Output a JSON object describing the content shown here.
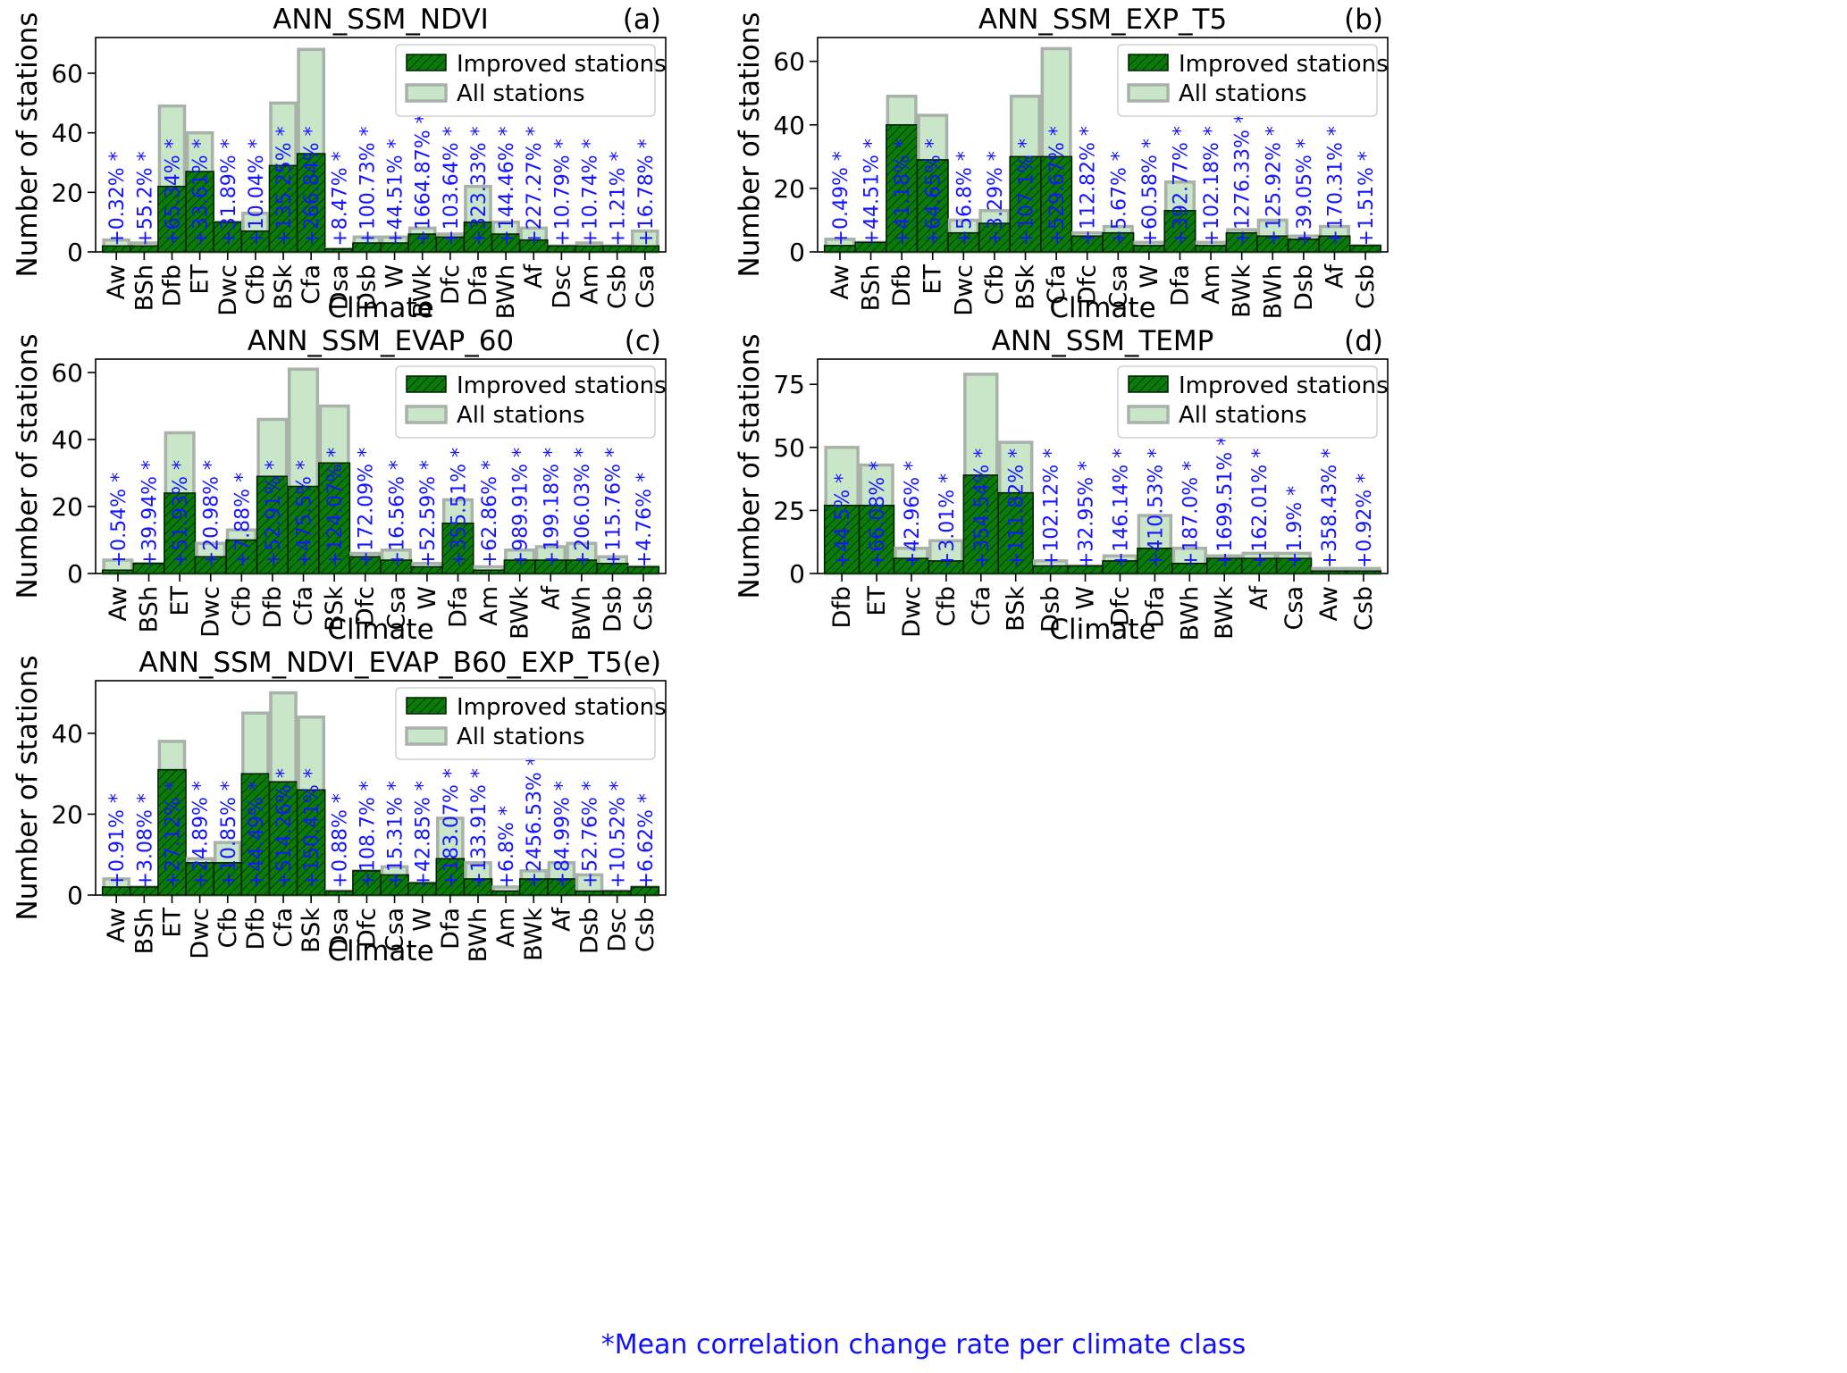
{
  "figure": {
    "footnote": "*Mean correlation change rate per climate class",
    "colors": {
      "improved": "#0a7a0a",
      "all": "#c9e6c9",
      "allEdge": "#a8b2a8",
      "annotation": "#1515ff",
      "axis": "#000000"
    }
  },
  "chart_data": [
    {
      "type": "bar",
      "panel": "(a)",
      "title": "ANN_SSM_NDVI",
      "xlabel": "Climate",
      "ylabel": "Number of stations",
      "ylim": [
        0,
        72
      ],
      "yticks": [
        0,
        20,
        40,
        60
      ],
      "legend": {
        "position": "top-right",
        "entries": [
          "Improved stations",
          "All stations"
        ]
      },
      "categories": [
        "Aw",
        "BSh",
        "Dfb",
        "ET",
        "Dwc",
        "Cfb",
        "BSk",
        "Cfa",
        "Dsa",
        "Dsb",
        "W",
        "BWk",
        "Dfc",
        "Dfa",
        "BWh",
        "Af",
        "Dsc",
        "Am",
        "Csb",
        "Csa"
      ],
      "series": [
        {
          "name": "All stations",
          "values": [
            4,
            3,
            49,
            40,
            10,
            13,
            50,
            68,
            1,
            5,
            5,
            8,
            6,
            22,
            10,
            8,
            2,
            3,
            2,
            7
          ]
        },
        {
          "name": "Improved stations",
          "values": [
            2,
            2,
            22,
            27,
            10,
            7,
            29,
            33,
            1,
            3,
            3,
            6,
            5,
            10,
            6,
            4,
            2,
            2,
            2,
            2
          ]
        }
      ],
      "annotations": [
        "+0.32% *",
        "+55.2% *",
        "+65.34% *",
        "+33.61% *",
        "+31.89% *",
        "+10.04% *",
        "+135.25% *",
        "+266.84% *",
        "+8.47% *",
        "+100.73% *",
        "+44.51% *",
        "+1664.87% *",
        "+103.64% *",
        "+323.33% *",
        "+144.46% *",
        "+227.27% *",
        "+10.79% *",
        "+10.74% *",
        "+1.21% *",
        "+16.78% *"
      ]
    },
    {
      "type": "bar",
      "panel": "(b)",
      "title": "ANN_SSM_EXP_T5",
      "xlabel": "Climate",
      "ylabel": "Number of stations",
      "ylim": [
        0,
        67.5
      ],
      "yticks": [
        0,
        20,
        40,
        60
      ],
      "legend": {
        "position": "top-right",
        "entries": [
          "Improved stations",
          "All stations"
        ]
      },
      "categories": [
        "Aw",
        "BSh",
        "Dfb",
        "ET",
        "Dwc",
        "Cfb",
        "BSk",
        "Cfa",
        "Dfc",
        "Csa",
        "W",
        "Dfa",
        "Am",
        "BWk",
        "BWh",
        "Dsb",
        "Af",
        "Csb"
      ],
      "series": [
        {
          "name": "All stations",
          "values": [
            4,
            3,
            49,
            43,
            10,
            13,
            49,
            64,
            6,
            8,
            3,
            22,
            3,
            7,
            10,
            5,
            8,
            2
          ]
        },
        {
          "name": "Improved stations",
          "values": [
            2,
            3,
            40,
            29,
            6,
            9,
            30,
            30,
            5,
            6,
            2,
            13,
            2,
            6,
            5,
            4,
            5,
            2
          ]
        }
      ],
      "annotations": [
        "+0.49% *",
        "+44.51% *",
        "+41.18% *",
        "+64.65% *",
        "+56.8% *",
        "+3.29% *",
        "+107.1% *",
        "+529.67% *",
        "+112.82% *",
        "+5.67% *",
        "+60.58% *",
        "+392.77% *",
        "+102.18% *",
        "+1276.33% *",
        "+125.92% *",
        "+39.05% *",
        "+170.31% *",
        "+1.51% *"
      ]
    },
    {
      "type": "bar",
      "panel": "(c)",
      "title": "ANN_SSM_EVAP_60",
      "xlabel": "Climate",
      "ylabel": "Number of stations",
      "ylim": [
        0,
        64
      ],
      "yticks": [
        0,
        20,
        40,
        60
      ],
      "legend": {
        "position": "top-right",
        "entries": [
          "Improved stations",
          "All stations"
        ]
      },
      "categories": [
        "Aw",
        "BSh",
        "ET",
        "Dwc",
        "Cfb",
        "Dfb",
        "Cfa",
        "BSk",
        "Dfc",
        "Csa",
        "W",
        "Dfa",
        "Am",
        "BWk",
        "Af",
        "BWh",
        "Dsb",
        "Csb"
      ],
      "series": [
        {
          "name": "All stations",
          "values": [
            4,
            3,
            42,
            9,
            13,
            46,
            61,
            50,
            6,
            7,
            3,
            22,
            2,
            7,
            8,
            9,
            5,
            2
          ]
        },
        {
          "name": "Improved stations",
          "values": [
            1,
            3,
            24,
            5,
            10,
            29,
            26,
            33,
            5,
            4,
            2,
            15,
            1,
            4,
            4,
            4,
            3,
            2
          ]
        }
      ],
      "annotations": [
        "+0.54% *",
        "+39.94% *",
        "+51.93% *",
        "+20.98% *",
        "+7.88% *",
        "+52.91% *",
        "+475.5% *",
        "+124.07% *",
        "+172.09% *",
        "+16.56% *",
        "+52.59% *",
        "+355.51% *",
        "+62.86% *",
        "+989.91% *",
        "+199.18% *",
        "+206.03% *",
        "+115.76% *",
        "+4.76% *"
      ]
    },
    {
      "type": "bar",
      "panel": "(d)",
      "title": "ANN_SSM_TEMP",
      "xlabel": "Climate",
      "ylabel": "Number of stations",
      "ylim": [
        0,
        85
      ],
      "yticks": [
        0,
        25,
        50,
        75
      ],
      "legend": {
        "position": "top-right",
        "entries": [
          "Improved stations",
          "All stations"
        ]
      },
      "categories": [
        "Dfb",
        "ET",
        "Dwc",
        "Cfb",
        "Cfa",
        "BSk",
        "Dsb",
        "W",
        "Dfc",
        "Dfa",
        "BWh",
        "BWk",
        "Af",
        "Csa",
        "Aw",
        "Csb"
      ],
      "series": [
        {
          "name": "All stations",
          "values": [
            50,
            43,
            10,
            13,
            79,
            52,
            5,
            3,
            7,
            23,
            10,
            7,
            8,
            8,
            2,
            2
          ]
        },
        {
          "name": "Improved stations",
          "values": [
            27,
            27,
            6,
            5,
            39,
            32,
            3,
            3,
            5,
            10,
            4,
            6,
            6,
            6,
            1,
            1
          ]
        }
      ],
      "annotations": [
        "+44.5% *",
        "+66.08% *",
        "+42.96% *",
        "+3.01% *",
        "+354.54% *",
        "+111.82% *",
        "+102.12% *",
        "+32.95% *",
        "+146.14% *",
        "+410.53% *",
        "+187.0% *",
        "+1699.51% *",
        "+162.01% *",
        "+1.9% *",
        "+358.43% *",
        "+0.92% *"
      ]
    },
    {
      "type": "bar",
      "panel": "(e)",
      "title": "ANN_SSM_NDVI_EVAP_B60_EXP_T5",
      "xlabel": "Climate",
      "ylabel": "Number of stations",
      "ylim": [
        0,
        53
      ],
      "yticks": [
        0,
        20,
        40
      ],
      "legend": {
        "position": "top-right",
        "entries": [
          "Improved stations",
          "All stations"
        ]
      },
      "categories": [
        "Aw",
        "BSh",
        "ET",
        "Dwc",
        "Cfb",
        "Dfb",
        "Cfa",
        "BSk",
        "Dsa",
        "Dfc",
        "Csa",
        "W",
        "Dfa",
        "BWh",
        "Am",
        "BWk",
        "Af",
        "Dsb",
        "Dsc",
        "Csb"
      ],
      "series": [
        {
          "name": "All stations",
          "values": [
            4,
            2,
            38,
            9,
            13,
            45,
            50,
            44,
            1,
            6,
            7,
            3,
            19,
            8,
            2,
            6,
            8,
            5,
            1,
            2
          ]
        },
        {
          "name": "Improved stations",
          "values": [
            2,
            2,
            31,
            8,
            8,
            30,
            28,
            26,
            1,
            6,
            5,
            3,
            9,
            4,
            1,
            4,
            4,
            1,
            1,
            2
          ]
        }
      ],
      "annotations": [
        "+0.91% *",
        "+3.08% *",
        "+27.12% *",
        "+24.89% *",
        "+10.85% *",
        "+44.49% *",
        "+514.26% *",
        "+150.41% *",
        "+0.88% *",
        "+108.7% *",
        "+15.31% *",
        "+42.85% *",
        "+183.07% *",
        "+133.91% *",
        "+6.8% *",
        "+2456.53% *",
        "+84.99% *",
        "+52.76% *",
        "+10.52% *",
        "+6.62% *"
      ]
    }
  ]
}
